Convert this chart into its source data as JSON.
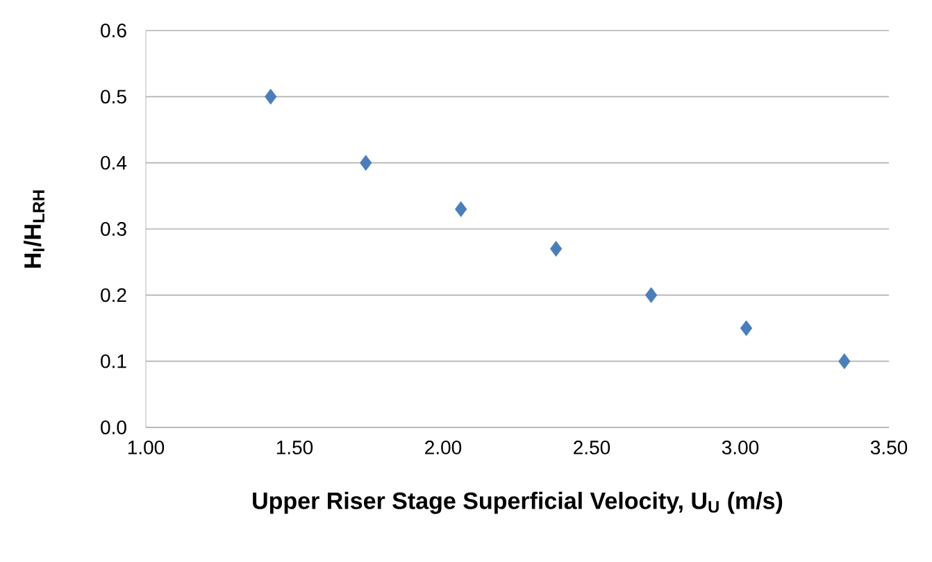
{
  "chart_data": {
    "type": "scatter",
    "xlabel": "Upper Riser Stage Superficial Velocity, U$_{U}$ (m/s)",
    "ylabel": "H$_{I}$/H$_{LRH}$",
    "x": [
      1.42,
      1.74,
      2.06,
      2.38,
      2.7,
      3.02,
      3.35
    ],
    "series": [
      {
        "color": "#4a7ebb",
        "values": [
          0.5,
          0.4,
          0.33,
          0.27,
          0.2,
          0.15,
          0.1
        ]
      }
    ],
    "xlim": [
      1.0,
      3.5
    ],
    "xticks": [
      {
        "value": 1.0,
        "label": "1.00"
      },
      {
        "value": 1.5,
        "label": "1.50"
      },
      {
        "value": 2.0,
        "label": "2.00"
      },
      {
        "value": 2.5,
        "label": "2.50"
      },
      {
        "value": 3.0,
        "label": "3.00"
      },
      {
        "value": 3.5,
        "label": "3.50"
      }
    ],
    "ylim": [
      0,
      0.6
    ],
    "yticks": [
      {
        "value": 0,
        "label": "0.0"
      },
      0.1,
      0.2,
      0.3,
      0.4,
      0.5,
      0.6
    ],
    "grid": "y",
    "marker": "diamond"
  }
}
